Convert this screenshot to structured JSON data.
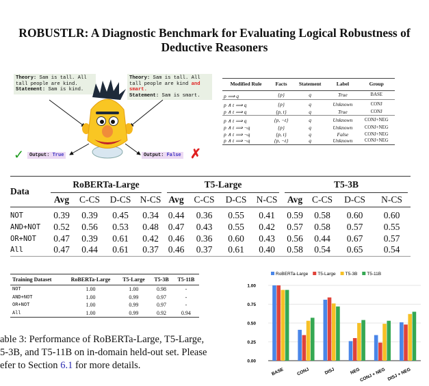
{
  "title": {
    "prefix": "R",
    "smallcaps": "OBUST",
    "suffix": "LR: A Diagnostic Benchmark for Evaluating Logical Robustness of",
    "line2": "Deductive Reasoners"
  },
  "figure": {
    "left_box": {
      "theory_label": "Theory:",
      "theory": " Sam is tall. All tall people are kind.",
      "statement_label": "Statement:",
      "statement": " Sam is kind."
    },
    "right_box": {
      "theory_label": "Theory:",
      "theory": " Sam is tall. All tall people are kind ",
      "theory_highlight": "and smart.",
      "statement_label": "Statement:",
      "statement": " Sam is smart."
    },
    "left_output": {
      "label": "Output:",
      "value": " True"
    },
    "right_output": {
      "label": "Output:",
      "value": " False"
    },
    "check_icon": "✓",
    "cross_icon": "✗",
    "colors": {
      "correct": "#1a9a1a",
      "wrong": "#e02020",
      "highlight": "#e02020"
    }
  },
  "rule_table": {
    "headers": [
      "Modified Rule",
      "Facts",
      "Statement",
      "Label",
      "Group"
    ],
    "groups": [
      [
        [
          "p ⟹ q",
          "{p}",
          "q",
          "True",
          "BASE"
        ]
      ],
      [
        [
          "p ∧ t ⟹ q",
          "{p}",
          "q",
          "Unknown",
          "CONJ"
        ],
        [
          "p ∧ t ⟹ q",
          "{p, t}",
          "q",
          "True",
          "CONJ"
        ]
      ],
      [
        [
          "p ∧ t ⟹ q",
          "{p, ¬t}",
          "q",
          "Unknown",
          "CONJ+NEG"
        ],
        [
          "p ∧ t ⟹ ¬q",
          "{p}",
          "q",
          "Unknown",
          "CONJ+NEG"
        ],
        [
          "p ∧ t ⟹ ¬q",
          "{p, t}",
          "q",
          "False",
          "CONJ+NEG"
        ],
        [
          "p ∧ t ⟹ ¬q",
          "{p, ¬t}",
          "q",
          "Unknown",
          "CONJ+NEG"
        ]
      ]
    ]
  },
  "main_table": {
    "data_header": "Data",
    "models": [
      "RoBERTa-Large",
      "T5-Large",
      "T5-3B"
    ],
    "subheaders": [
      "Avg",
      "C-CS",
      "D-CS",
      "N-CS"
    ],
    "rows": [
      {
        "data": "NOT",
        "values": [
          "0.39",
          "0.39",
          "0.45",
          "0.34",
          "0.44",
          "0.36",
          "0.55",
          "0.41",
          "0.59",
          "0.58",
          "0.60",
          "0.60"
        ]
      },
      {
        "data": "AND+NOT",
        "values": [
          "0.52",
          "0.56",
          "0.53",
          "0.48",
          "0.47",
          "0.43",
          "0.55",
          "0.42",
          "0.57",
          "0.58",
          "0.57",
          "0.55"
        ]
      },
      {
        "data": "OR+NOT",
        "values": [
          "0.47",
          "0.39",
          "0.61",
          "0.42",
          "0.46",
          "0.36",
          "0.60",
          "0.43",
          "0.56",
          "0.44",
          "0.67",
          "0.57"
        ]
      },
      {
        "data": "All",
        "values": [
          "0.47",
          "0.44",
          "0.61",
          "0.37",
          "0.46",
          "0.37",
          "0.61",
          "0.40",
          "0.58",
          "0.54",
          "0.65",
          "0.54"
        ]
      }
    ]
  },
  "indomain_table": {
    "headers": [
      "Training Dataset",
      "RoBERTa-Large",
      "T5-Large",
      "T5-3B",
      "T5-11B"
    ],
    "rows": [
      [
        "NOT",
        "1.00",
        "1.00",
        "0.98",
        "-"
      ],
      [
        "AND+NOT",
        "1.00",
        "0.99",
        "0.97",
        "-"
      ],
      [
        "OR+NOT",
        "1.00",
        "0.99",
        "0.97",
        "-"
      ],
      [
        "All",
        "1.00",
        "0.99",
        "0.92",
        "0.94"
      ]
    ]
  },
  "caption": {
    "line1": "able 3:  Performance of RoBERTa-Large, T5-Large,",
    "line2": "5-3B, and T5-11B on in-domain held-out set. Please",
    "line3_a": "efer to Section ",
    "line3_link": "6.1",
    "line3_b": " for more details."
  },
  "chart_data": {
    "type": "bar",
    "categories": [
      "BASE",
      "CONJ",
      "DISJ",
      "NEG",
      "CONJ + NEG",
      "DISJ + NEG"
    ],
    "series": [
      {
        "name": "RoBERTa-Large",
        "color": "#4a86e8",
        "values": [
          1.0,
          0.41,
          0.81,
          0.26,
          0.34,
          0.51
        ]
      },
      {
        "name": "T5-Large",
        "color": "#e0433a",
        "values": [
          1.0,
          0.34,
          0.84,
          0.3,
          0.24,
          0.48
        ]
      },
      {
        "name": "T5-3B",
        "color": "#f6c026",
        "values": [
          0.94,
          0.53,
          0.76,
          0.5,
          0.49,
          0.62
        ]
      },
      {
        "name": "T5-11B",
        "color": "#35a853",
        "values": [
          0.94,
          0.57,
          0.72,
          0.54,
          0.53,
          0.65
        ]
      }
    ],
    "yticks": [
      "0.00",
      "0.25",
      "0.50",
      "0.75",
      "1.00"
    ],
    "ylim": [
      0,
      1
    ],
    "grid": true,
    "legend": "top"
  }
}
